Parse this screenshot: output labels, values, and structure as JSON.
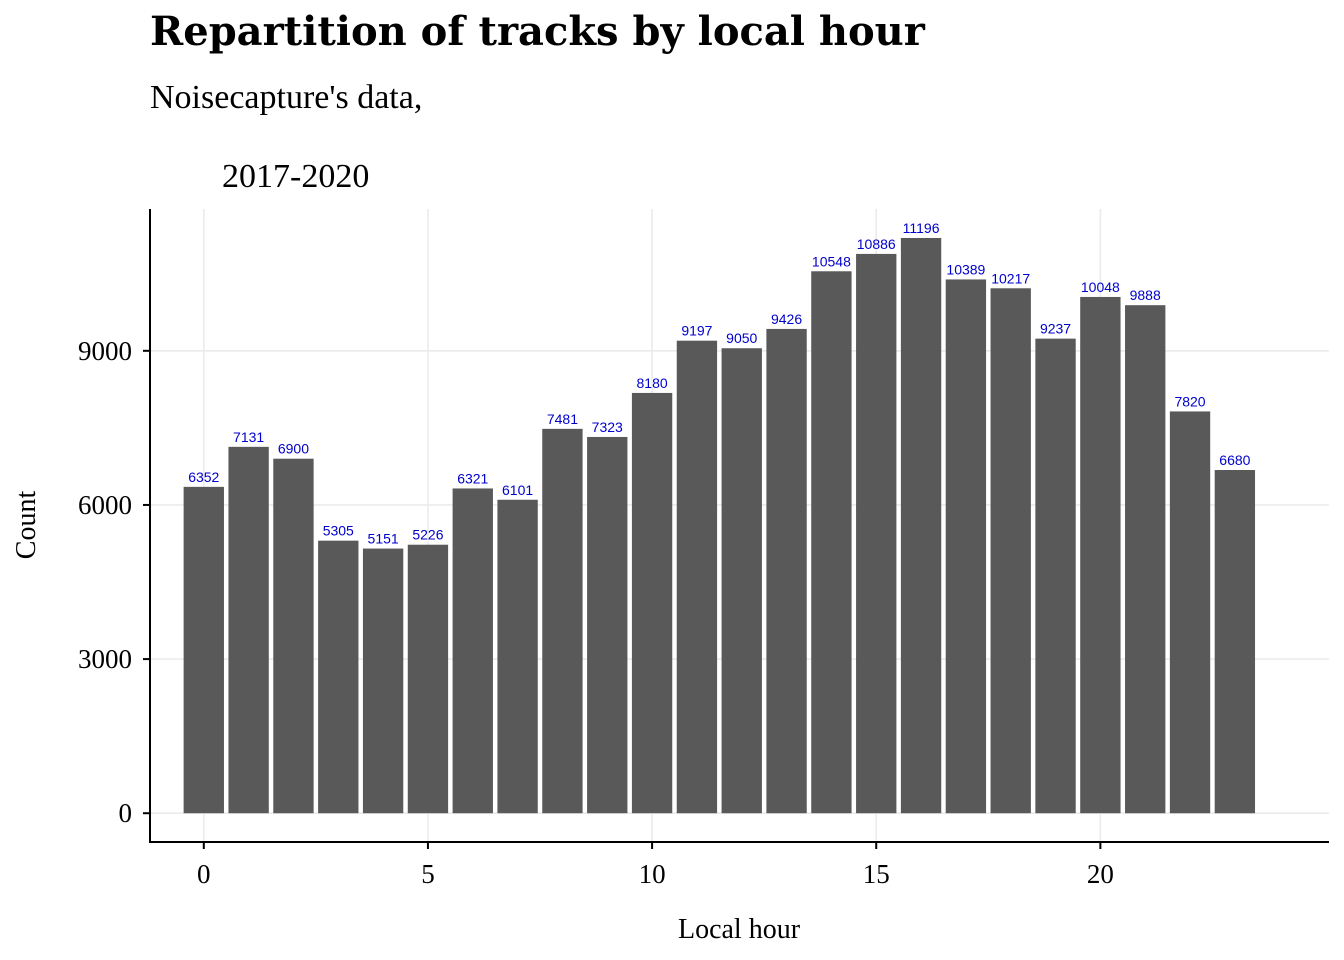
{
  "chart_data": {
    "type": "bar",
    "title": "Repartition of tracks by local hour",
    "subtitle_line1": "Noisecapture's data,",
    "subtitle_line2": "2017-2020",
    "xlabel": "Local hour",
    "ylabel": "Count",
    "x": [
      0,
      1,
      2,
      3,
      4,
      5,
      6,
      7,
      8,
      9,
      10,
      11,
      12,
      13,
      14,
      15,
      16,
      17,
      18,
      19,
      20,
      21,
      22,
      23
    ],
    "values": [
      6352,
      7131,
      6900,
      5305,
      5151,
      5226,
      6321,
      6101,
      7481,
      7323,
      8180,
      9197,
      9050,
      9426,
      10548,
      10886,
      11196,
      10389,
      10217,
      9237,
      10048,
      9888,
      7820,
      6680
    ],
    "xticks": [
      0,
      5,
      10,
      15,
      20
    ],
    "yticks": [
      0,
      3000,
      6000,
      9000
    ],
    "xlim": [
      -1.2,
      25.1
    ],
    "ylim": [
      -560,
      11760
    ],
    "grid": true,
    "colors": {
      "bar": "#595959",
      "data_label": "#0000cc",
      "grid": "#ebebeb",
      "axis": "#000000"
    }
  }
}
